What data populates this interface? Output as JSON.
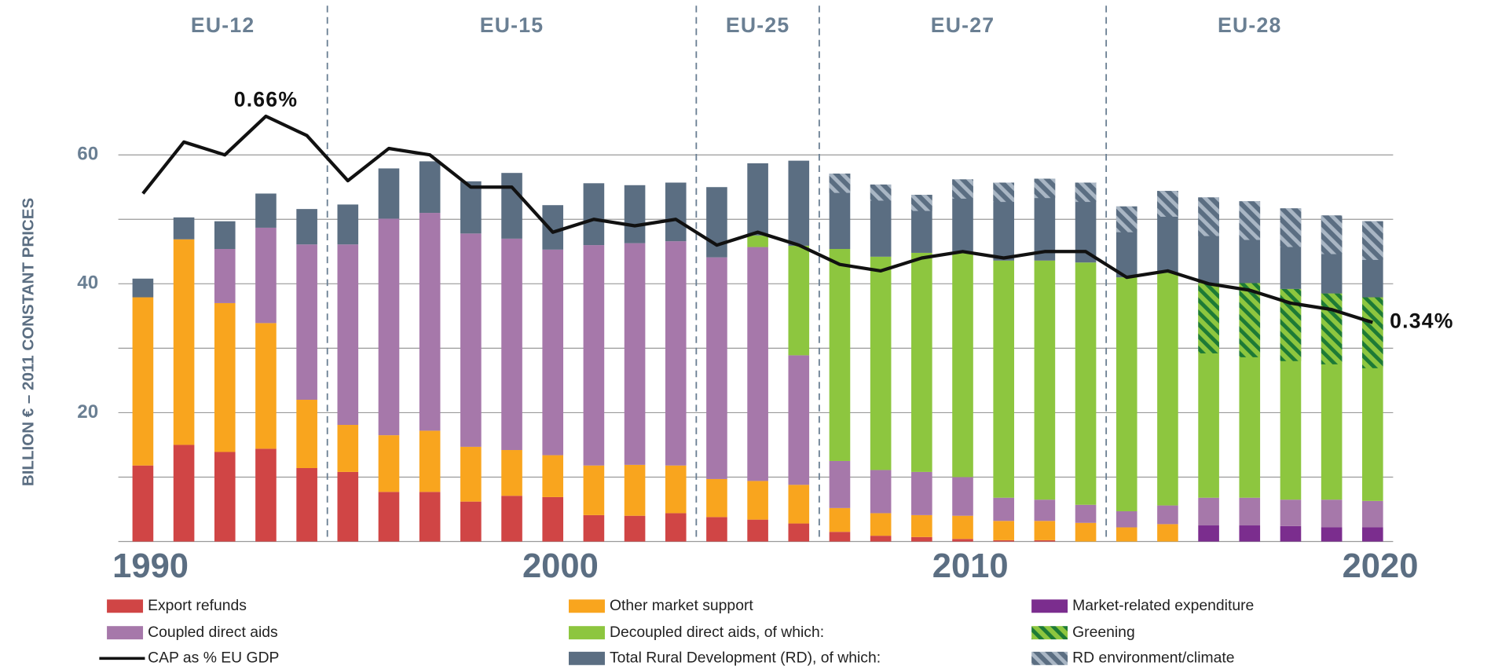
{
  "chart_data": {
    "type": "bar",
    "y_label": "BILLION € – 2011 CONSTANT PRICES",
    "x": [
      1990,
      1991,
      1992,
      1993,
      1994,
      1995,
      1996,
      1997,
      1998,
      1999,
      2000,
      2001,
      2002,
      2003,
      2004,
      2005,
      2006,
      2007,
      2008,
      2009,
      2010,
      2011,
      2012,
      2013,
      2014,
      2015,
      2016,
      2017,
      2018,
      2019,
      2020
    ],
    "xlim": [
      1989.4,
      2020.5
    ],
    "xticks": [
      1990,
      2000,
      2010,
      2020
    ],
    "ylim": [
      0,
      70
    ],
    "yticks": [
      20,
      40,
      60
    ],
    "minor_yticks": [
      10,
      30,
      50
    ],
    "y2lim": [
      0,
      0.7
    ],
    "grid": true,
    "eras": [
      {
        "label": "EU-12",
        "from": 1989.4,
        "to": 1994.5
      },
      {
        "label": "EU-15",
        "from": 1994.5,
        "to": 2003.5
      },
      {
        "label": "EU-25",
        "from": 2003.5,
        "to": 2006.5
      },
      {
        "label": "EU-27",
        "from": 2006.5,
        "to": 2013.5
      },
      {
        "label": "EU-28",
        "from": 2013.5,
        "to": 2020.5
      }
    ],
    "series": [
      {
        "name": "Export refunds",
        "color": "#d04545",
        "style": "solid",
        "values": [
          11.8,
          15,
          13.9,
          14.4,
          11.4,
          10.8,
          7.7,
          7.7,
          6.2,
          7.1,
          6.9,
          4.1,
          4,
          4.4,
          3.8,
          3.4,
          2.8,
          1.5,
          0.9,
          0.7,
          0.4,
          0.2,
          0.2,
          null,
          null,
          null,
          null,
          null,
          null,
          null,
          null
        ]
      },
      {
        "name": "Other market support",
        "color": "#f9a51e",
        "style": "solid",
        "values": [
          26.1,
          31.9,
          23.1,
          19.5,
          10.6,
          7.3,
          8.8,
          9.5,
          8.5,
          7.1,
          6.5,
          7.7,
          7.9,
          7.4,
          5.9,
          6,
          6,
          3.7,
          3.5,
          3.4,
          3.6,
          3,
          3,
          2.9,
          2.2,
          2.7,
          null,
          null,
          null,
          null,
          null
        ]
      },
      {
        "name": "Market-related expenditure",
        "color": "#7b2d8e",
        "style": "solid",
        "values": [
          null,
          null,
          null,
          null,
          null,
          null,
          null,
          null,
          null,
          null,
          null,
          null,
          null,
          null,
          null,
          null,
          null,
          null,
          null,
          null,
          null,
          null,
          null,
          null,
          null,
          null,
          2.5,
          2.5,
          2.4,
          2.2,
          2.2
        ]
      },
      {
        "name": "Coupled direct aids",
        "color": "#a678aa",
        "style": "solid",
        "values": [
          null,
          null,
          8.4,
          14.8,
          24.1,
          28,
          33.6,
          33.8,
          33.1,
          32.8,
          31.9,
          34.2,
          34.4,
          34.8,
          34.4,
          36.3,
          20.1,
          7.3,
          6.7,
          6.7,
          6,
          3.6,
          3.3,
          2.8,
          2.5,
          2.9,
          4.3,
          4.3,
          4.1,
          4.3,
          4.1
        ]
      },
      {
        "name": "Decoupled direct aids, of which:",
        "color": "#8dc63f",
        "style": "solid",
        "values": [
          null,
          null,
          null,
          null,
          null,
          null,
          null,
          null,
          null,
          null,
          null,
          null,
          null,
          null,
          null,
          1.8,
          17,
          32.9,
          33.1,
          34,
          35,
          36.8,
          37.1,
          37.6,
          36.3,
          36.1,
          33.3,
          33.3,
          32.7,
          32,
          31.6
        ]
      },
      {
        "name": "Greening",
        "color": "#1d7a36",
        "style": "hatched",
        "values": [
          null,
          null,
          null,
          null,
          null,
          null,
          null,
          null,
          null,
          null,
          null,
          null,
          null,
          null,
          null,
          null,
          null,
          null,
          null,
          null,
          null,
          null,
          null,
          null,
          null,
          null,
          10.9,
          11.5,
          11.2,
          11,
          11
        ]
      },
      {
        "name": "CAP as % EU GDP",
        "color": "#111111",
        "style": "line",
        "axis": "y2",
        "values": [
          0.54,
          0.62,
          0.6,
          0.66,
          0.63,
          0.56,
          0.61,
          0.6,
          0.55,
          0.55,
          0.48,
          0.5,
          0.49,
          0.5,
          0.46,
          0.48,
          0.46,
          0.43,
          0.42,
          0.44,
          0.45,
          0.44,
          0.45,
          0.45,
          0.41,
          0.42,
          0.4,
          0.39,
          0.37,
          0.36,
          0.34
        ],
        "value_labels": [
          null,
          null,
          null,
          "0.66%",
          null,
          null,
          null,
          null,
          null,
          null,
          null,
          null,
          null,
          null,
          null,
          null,
          null,
          null,
          null,
          null,
          null,
          null,
          null,
          null,
          null,
          null,
          null,
          null,
          null,
          null,
          "0.34%"
        ]
      },
      {
        "name": "Total Rural Development (RD), of which:",
        "color": "#5b6e82",
        "style": "solid",
        "values": [
          2.9,
          3.4,
          4.3,
          5.3,
          5.5,
          6.2,
          7.8,
          8,
          8.1,
          10.2,
          6.9,
          9.6,
          9,
          9.1,
          10.9,
          11.2,
          13.2,
          11.7,
          11.2,
          9,
          11.2,
          12.1,
          12.7,
          12.4,
          11,
          12.7,
          13.3,
          12.7,
          12.5,
          12.1,
          11.8
        ]
      },
      {
        "name": "RD environment/climate",
        "color": "#a9b6c4",
        "style": "hatched",
        "values": [
          null,
          null,
          null,
          null,
          null,
          null,
          null,
          null,
          null,
          null,
          null,
          null,
          null,
          null,
          null,
          null,
          null,
          3,
          2.5,
          2.5,
          3,
          3,
          3,
          3,
          4,
          4,
          6,
          6,
          6,
          6,
          6
        ]
      }
    ]
  }
}
